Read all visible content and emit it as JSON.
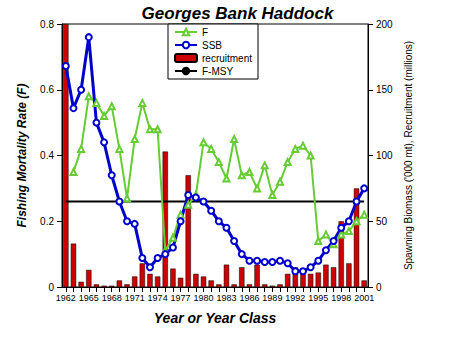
{
  "chart_data": {
    "type": "combo",
    "title": "Georges Bank Haddock",
    "x_label": "Year or Year Class",
    "y_label": "Fishing Mortality Rate (F)",
    "y2_label": "Spawning Biomass ('000 mt), Recruitment (millions)",
    "categories": [
      "1962",
      null,
      null,
      "1965",
      null,
      null,
      "1968",
      null,
      null,
      "1971",
      null,
      null,
      "1974",
      null,
      null,
      "1977",
      null,
      null,
      "1980",
      null,
      null,
      "1983",
      null,
      null,
      "1986",
      null,
      null,
      "1989",
      null,
      null,
      "1992",
      null,
      null,
      "1995",
      null,
      null,
      "1998",
      null,
      null,
      "2001"
    ],
    "ylim": [
      0,
      0.8
    ],
    "yticks": [
      0,
      0.2,
      0.4,
      0.6,
      0.8
    ],
    "y2lim": [
      0,
      200
    ],
    "y2ticks": [
      0,
      50,
      100,
      150,
      200
    ],
    "grid": false,
    "legend": "top",
    "series": [
      {
        "name": "F",
        "type": "line",
        "color": "#66cc33",
        "marker": "triangle",
        "axis": "y",
        "values": [
          null,
          0.35,
          0.42,
          0.58,
          0.56,
          0.52,
          0.55,
          0.42,
          0.27,
          0.45,
          0.56,
          0.48,
          0.48,
          0.11,
          0.15,
          0.22,
          0.25,
          0.28,
          0.44,
          0.42,
          0.38,
          0.33,
          0.45,
          0.34,
          0.35,
          0.3,
          0.37,
          0.28,
          0.32,
          0.38,
          0.42,
          0.43,
          0.4,
          0.14,
          0.16,
          0.13,
          0.16,
          0.17,
          0.2,
          0.22
        ]
      },
      {
        "name": "SSB",
        "type": "line",
        "color": "#0000cc",
        "marker": "circle",
        "axis": "y2",
        "values": [
          168,
          136,
          150,
          190,
          125,
          110,
          85,
          65,
          50,
          48,
          22,
          15,
          22,
          25,
          30,
          50,
          70,
          68,
          65,
          58,
          50,
          45,
          35,
          25,
          20,
          20,
          19,
          19,
          20,
          18,
          12,
          12,
          15,
          20,
          28,
          35,
          45,
          50,
          65,
          75
        ]
      },
      {
        "name": "recruitment",
        "type": "bar",
        "color": "#cc0000",
        "marker": "none",
        "axis": "y2",
        "values": [
          200,
          33,
          4,
          13,
          2,
          1,
          1,
          5,
          2,
          8,
          18,
          10,
          8,
          103,
          14,
          7,
          85,
          10,
          8,
          5,
          2,
          17,
          2,
          15,
          2,
          17,
          2,
          1,
          2,
          10,
          15,
          14,
          10,
          11,
          17,
          15,
          50,
          18,
          75,
          5
        ]
      },
      {
        "name": "F-MSY",
        "type": "line",
        "color": "#000000",
        "marker": "none",
        "axis": "y",
        "values": [
          0.26,
          0.26,
          0.26,
          0.26,
          0.26,
          0.26,
          0.26,
          0.26,
          0.26,
          0.26,
          0.26,
          0.26,
          0.26,
          0.26,
          0.26,
          0.26,
          0.26,
          0.26,
          0.26,
          0.26,
          0.26,
          0.26,
          0.26,
          0.26,
          0.26,
          0.26,
          0.26,
          0.26,
          0.26,
          0.26,
          0.26,
          0.26,
          0.26,
          0.26,
          0.26,
          0.26,
          0.26,
          0.26,
          0.26,
          0.26
        ]
      }
    ]
  }
}
